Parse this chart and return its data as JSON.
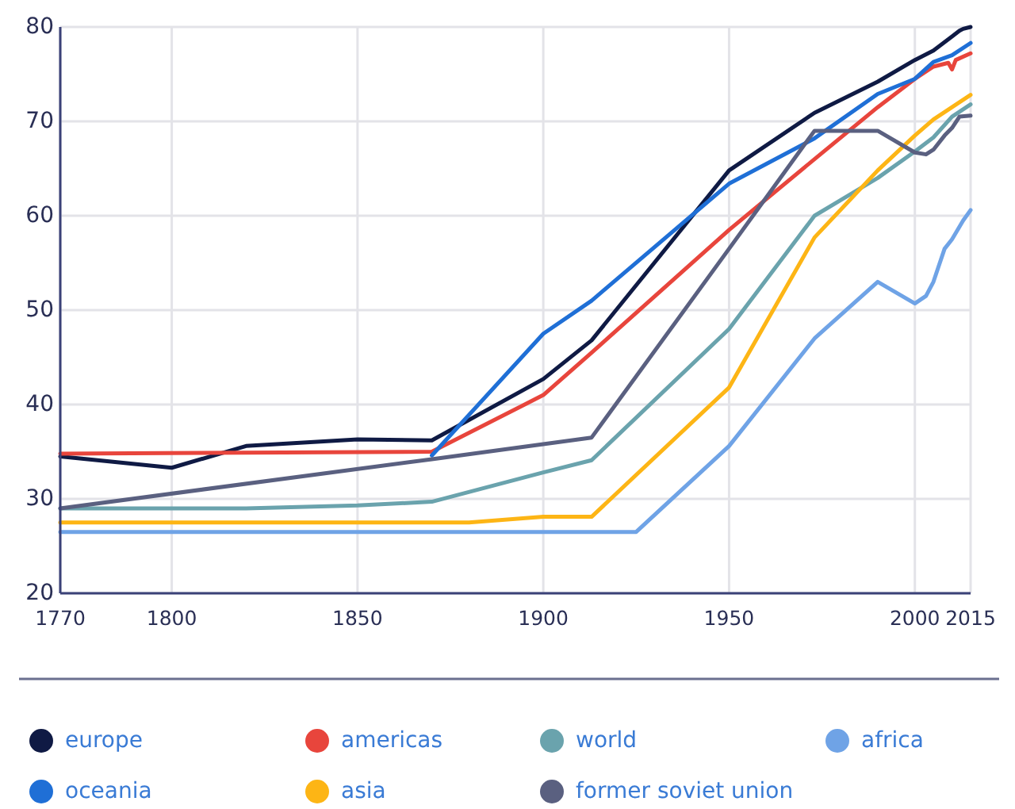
{
  "chart_data": {
    "type": "line",
    "xlim": [
      1770,
      2015
    ],
    "xticks": [
      1770,
      1800,
      1850,
      1900,
      1950,
      2000,
      2015
    ],
    "ylim": [
      20,
      80
    ],
    "yticks": [
      20,
      30,
      40,
      50,
      60,
      70,
      80
    ],
    "grid": true,
    "legend": "bottom",
    "marker": "none",
    "line_style": "solid",
    "series": [
      {
        "name": "europe",
        "color": "#0f1a44",
        "x": [
          1770,
          1800,
          1820,
          1850,
          1870,
          1900,
          1913,
          1950,
          1973,
          1990,
          2000,
          2005,
          2010,
          2012,
          2013,
          2015
        ],
        "values": [
          34.5,
          33.3,
          35.6,
          36.3,
          36.2,
          42.7,
          46.8,
          64.8,
          70.9,
          74.2,
          76.5,
          77.5,
          79,
          79.6,
          79.8,
          80
        ]
      },
      {
        "name": "americas",
        "color": "#e8453c",
        "x": [
          1770,
          1870,
          1900,
          1913,
          1950,
          1973,
          1990,
          2000,
          2005,
          2009,
          2010,
          2011,
          2015
        ],
        "values": [
          34.8,
          35,
          41,
          45.5,
          58.5,
          66,
          71.5,
          74.5,
          75.8,
          76.2,
          75.5,
          76.5,
          77.2
        ]
      },
      {
        "name": "world",
        "color": "#6aa3ad",
        "x": [
          1770,
          1820,
          1850,
          1870,
          1900,
          1913,
          1950,
          1973,
          1990,
          2000,
          2005,
          2010,
          2015
        ],
        "values": [
          29,
          29,
          29.3,
          29.7,
          32.8,
          34.1,
          48,
          60,
          64,
          66.8,
          68.3,
          70.5,
          71.8
        ]
      },
      {
        "name": "africa",
        "color": "#6fa3e6",
        "x": [
          1770,
          1925,
          1950,
          1973,
          1990,
          2000,
          2003,
          2005,
          2008,
          2010,
          2013,
          2015
        ],
        "values": [
          26.5,
          26.5,
          35.6,
          47,
          53,
          50.7,
          51.5,
          53,
          56.5,
          57.5,
          59.5,
          60.6
        ]
      },
      {
        "name": "oceania",
        "color": "#1f6fd6",
        "x": [
          1870,
          1900,
          1913,
          1950,
          1973,
          1990,
          2000,
          2005,
          2010,
          2015
        ],
        "values": [
          34.6,
          47.5,
          51,
          63.4,
          68.2,
          72.9,
          74.5,
          76.3,
          77,
          78.3
        ]
      },
      {
        "name": "asia",
        "color": "#fdb515",
        "x": [
          1770,
          1880,
          1900,
          1913,
          1950,
          1973,
          1990,
          2000,
          2005,
          2010,
          2015
        ],
        "values": [
          27.5,
          27.5,
          28.1,
          28.1,
          41.8,
          57.7,
          64.8,
          68.5,
          70.2,
          71.5,
          72.8
        ]
      },
      {
        "name": "former soviet union",
        "color": "#5a6080",
        "x": [
          1770,
          1870,
          1913,
          1950,
          1973,
          1990,
          2000,
          2003,
          2005,
          2008,
          2010,
          2012,
          2015
        ],
        "values": [
          29,
          34.2,
          36.5,
          56.5,
          69,
          69,
          66.7,
          66.5,
          67,
          68.5,
          69.3,
          70.5,
          70.6
        ]
      }
    ]
  }
}
